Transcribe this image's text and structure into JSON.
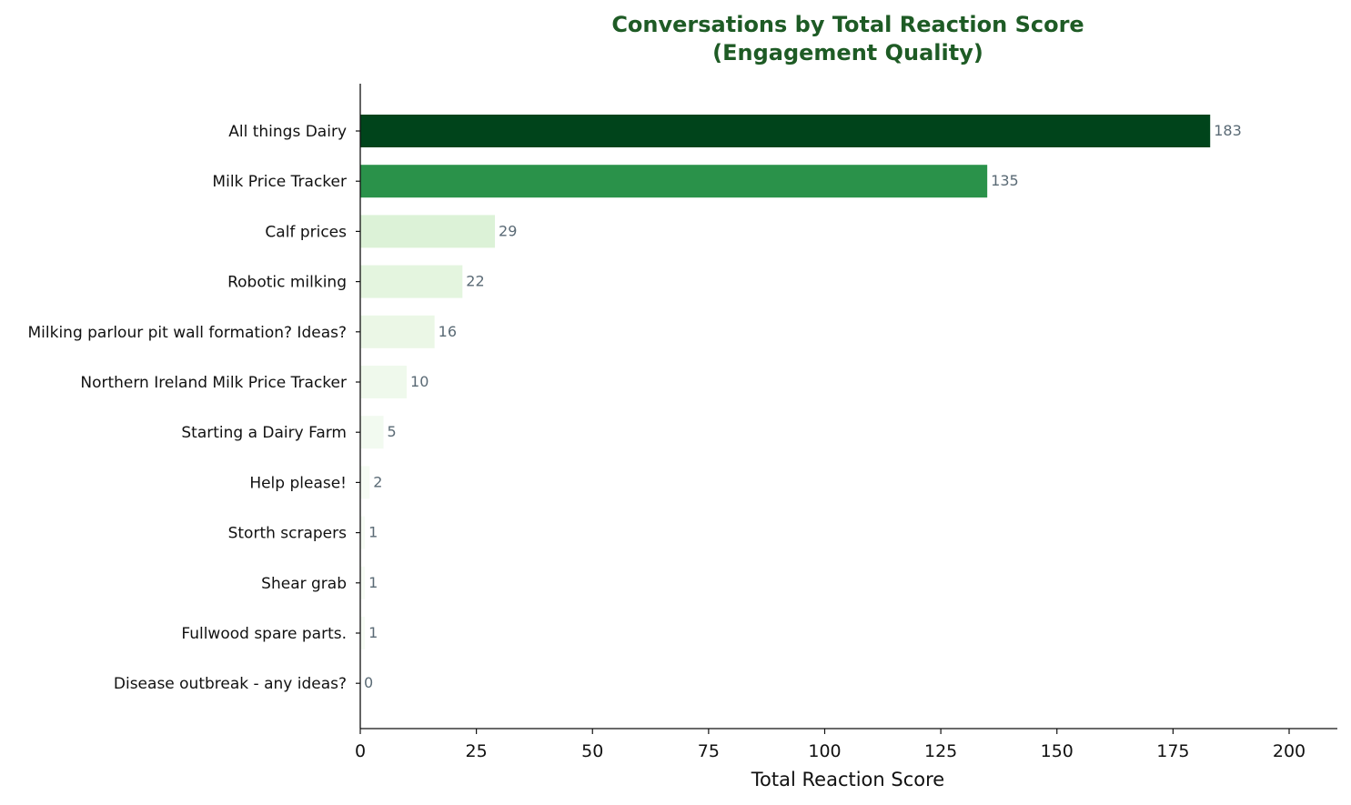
{
  "chart_data": {
    "type": "bar",
    "orientation": "horizontal",
    "title": "Conversations by Total Reaction Score",
    "subtitle": "(Engagement Quality)",
    "xlabel": "Total Reaction Score",
    "ylabel": "",
    "xlim": [
      0,
      210
    ],
    "xticks": [
      0,
      25,
      50,
      75,
      100,
      125,
      150,
      175,
      200
    ],
    "grid": false,
    "categories": [
      "All things Dairy",
      "Milk Price Tracker",
      "Calf prices",
      "Robotic milking",
      "Milking parlour pit wall formation? Ideas?",
      "Northern Ireland Milk Price Tracker",
      "Starting a Dairy Farm",
      "Help please!",
      "Storth scrapers",
      "Shear grab",
      "Fullwood spare parts.",
      "Disease outbreak - any ideas?"
    ],
    "values": [
      183,
      135,
      29,
      22,
      16,
      10,
      5,
      2,
      1,
      1,
      1,
      0
    ],
    "colors": [
      "#00441b",
      "#2a924a",
      "#dcf2d7",
      "#e4f5df",
      "#ebf7e6",
      "#eff9ec",
      "#f2faf0",
      "#f6fcf4",
      "#f7fcf5",
      "#f7fcf5",
      "#f7fcf5",
      "#f7fcf5"
    ],
    "title_color": "#1e5b25",
    "value_label_color": "#5a6a75"
  }
}
